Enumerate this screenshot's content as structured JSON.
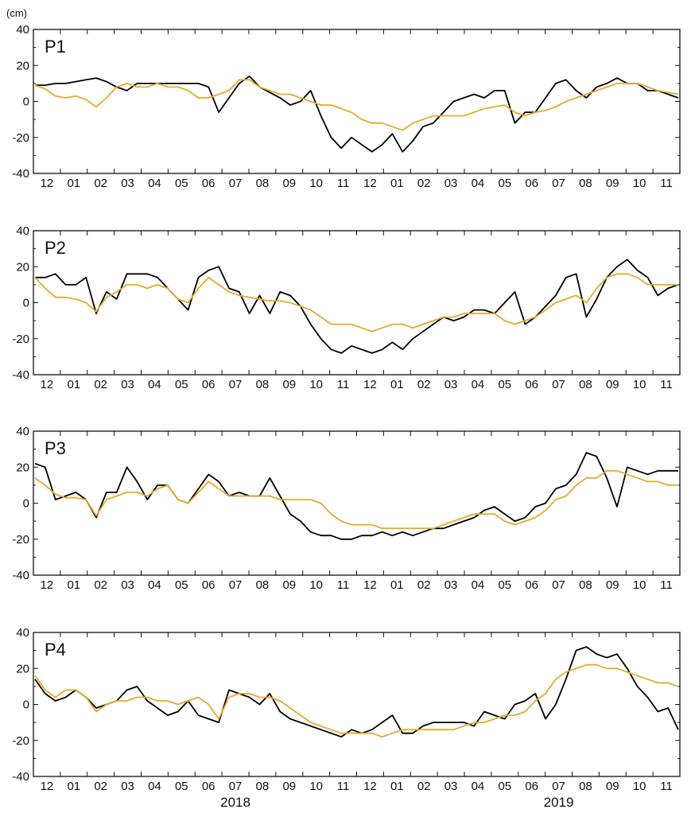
{
  "chart_data": {
    "type": "line",
    "unit_label": "(cm)",
    "x_tick_labels": [
      "12",
      "01",
      "02",
      "03",
      "04",
      "05",
      "06",
      "07",
      "08",
      "09",
      "10",
      "11",
      "12",
      "01",
      "02",
      "03",
      "04",
      "05",
      "06",
      "07",
      "08",
      "09",
      "10",
      "11"
    ],
    "year_labels": [
      {
        "text": "2018",
        "month_index": 7
      },
      {
        "text": "2019",
        "month_index": 19
      }
    ],
    "ylim": [
      -40,
      40
    ],
    "y_ticks": [
      -40,
      -20,
      0,
      20,
      40
    ],
    "colors": {
      "series_1": "#000000",
      "series_2": "#E8A92B"
    },
    "panels": [
      {
        "label": "P1",
        "series_1": [
          9,
          9,
          10,
          10,
          11,
          12,
          13,
          11,
          8,
          6,
          10,
          10,
          10,
          10,
          10,
          10,
          10,
          8,
          -6,
          2,
          10,
          14,
          8,
          5,
          2,
          -2,
          0,
          6,
          -8,
          -20,
          -26,
          -20,
          -24,
          -28,
          -24,
          -18,
          -28,
          -22,
          -14,
          -12,
          -6,
          0,
          2,
          4,
          2,
          6,
          6,
          -12,
          -6,
          -6,
          2,
          10,
          12,
          6,
          2,
          8,
          10,
          13,
          10,
          10,
          6,
          6,
          4,
          2
        ],
        "series_2": [
          9,
          7,
          3,
          2,
          3,
          1,
          -3,
          2,
          8,
          10,
          8,
          8,
          10,
          8,
          8,
          6,
          2,
          2,
          4,
          6,
          12,
          12,
          8,
          6,
          4,
          4,
          2,
          0,
          -2,
          -2,
          -4,
          -6,
          -10,
          -12,
          -12,
          -14,
          -16,
          -12,
          -10,
          -8,
          -8,
          -8,
          -8,
          -6,
          -4,
          -3,
          -2,
          -6,
          -8,
          -6,
          -5,
          -3,
          0,
          2,
          4,
          6,
          8,
          10,
          10,
          10,
          8,
          6,
          5,
          4
        ]
      },
      {
        "label": "P2",
        "series_1": [
          14,
          14,
          16,
          10,
          10,
          14,
          -6,
          6,
          2,
          16,
          16,
          16,
          14,
          8,
          2,
          -4,
          14,
          18,
          20,
          8,
          6,
          -6,
          4,
          -6,
          6,
          4,
          -2,
          -12,
          -20,
          -26,
          -28,
          -24,
          -26,
          -28,
          -26,
          -22,
          -26,
          -20,
          -16,
          -12,
          -8,
          -10,
          -8,
          -4,
          -4,
          -6,
          0,
          6,
          -12,
          -8,
          -2,
          4,
          14,
          16,
          -8,
          2,
          14,
          20,
          24,
          18,
          14,
          4,
          8,
          10
        ],
        "series_2": [
          14,
          8,
          3,
          3,
          2,
          0,
          -5,
          3,
          6,
          10,
          10,
          8,
          10,
          8,
          2,
          0,
          8,
          14,
          10,
          6,
          4,
          3,
          2,
          1,
          1,
          0,
          -2,
          -4,
          -8,
          -12,
          -12,
          -12,
          -14,
          -16,
          -14,
          -12,
          -12,
          -14,
          -12,
          -10,
          -8,
          -8,
          -6,
          -6,
          -6,
          -6,
          -10,
          -12,
          -10,
          -8,
          -4,
          0,
          2,
          4,
          0,
          8,
          14,
          16,
          16,
          14,
          10,
          10,
          10,
          10
        ]
      },
      {
        "label": "P3",
        "series_1": [
          22,
          20,
          2,
          4,
          6,
          2,
          -8,
          6,
          6,
          20,
          12,
          2,
          10,
          10,
          2,
          0,
          8,
          16,
          12,
          4,
          6,
          4,
          4,
          14,
          4,
          -6,
          -10,
          -16,
          -18,
          -18,
          -20,
          -20,
          -18,
          -18,
          -16,
          -18,
          -16,
          -18,
          -16,
          -14,
          -14,
          -12,
          -10,
          -8,
          -4,
          -2,
          -6,
          -10,
          -8,
          -2,
          0,
          8,
          10,
          16,
          28,
          26,
          14,
          -2,
          20,
          18,
          16,
          18,
          18,
          18
        ],
        "series_2": [
          14,
          10,
          5,
          3,
          3,
          2,
          -7,
          2,
          4,
          6,
          6,
          4,
          8,
          10,
          2,
          0,
          6,
          12,
          8,
          4,
          4,
          4,
          4,
          4,
          2,
          2,
          2,
          2,
          0,
          -6,
          -10,
          -12,
          -12,
          -12,
          -14,
          -14,
          -14,
          -14,
          -14,
          -14,
          -12,
          -10,
          -8,
          -6,
          -6,
          -6,
          -10,
          -12,
          -10,
          -8,
          -4,
          2,
          4,
          10,
          14,
          14,
          18,
          18,
          16,
          14,
          12,
          12,
          10,
          10
        ]
      },
      {
        "label": "P4",
        "series_1": [
          14,
          6,
          2,
          4,
          8,
          4,
          -2,
          0,
          2,
          8,
          10,
          2,
          -2,
          -6,
          -4,
          2,
          -6,
          -8,
          -10,
          8,
          6,
          4,
          0,
          6,
          -4,
          -8,
          -10,
          -12,
          -14,
          -16,
          -18,
          -14,
          -16,
          -14,
          -10,
          -6,
          -16,
          -16,
          -12,
          -10,
          -10,
          -10,
          -10,
          -12,
          -4,
          -6,
          -8,
          0,
          2,
          6,
          -8,
          0,
          14,
          30,
          32,
          28,
          26,
          28,
          20,
          10,
          4,
          -4,
          -2,
          -14
        ],
        "series_2": [
          16,
          8,
          4,
          8,
          8,
          4,
          -4,
          0,
          2,
          2,
          4,
          4,
          2,
          2,
          0,
          2,
          4,
          0,
          -8,
          4,
          6,
          6,
          4,
          4,
          2,
          -2,
          -6,
          -10,
          -12,
          -14,
          -16,
          -16,
          -16,
          -16,
          -18,
          -16,
          -14,
          -14,
          -14,
          -14,
          -14,
          -14,
          -12,
          -10,
          -10,
          -8,
          -6,
          -6,
          -4,
          2,
          6,
          14,
          18,
          20,
          22,
          22,
          20,
          20,
          18,
          16,
          14,
          12,
          12,
          10
        ]
      }
    ]
  }
}
